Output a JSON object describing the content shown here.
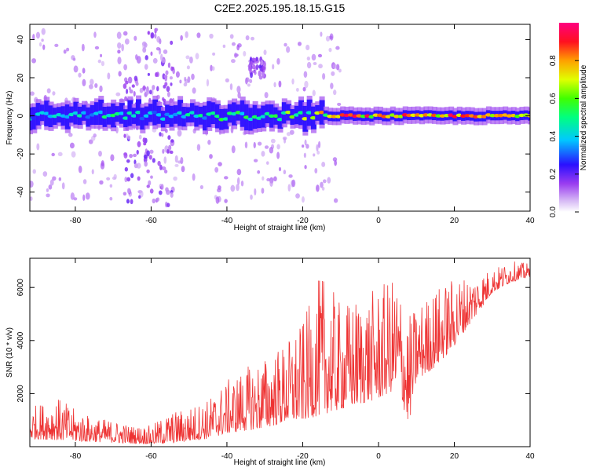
{
  "figure_title": "C2E2.2025.195.18.15.G15",
  "chart_data": [
    {
      "type": "heatmap",
      "title": "",
      "xlabel": "Height of straight line (km)",
      "ylabel": "Frequency (Hz)",
      "xlim": [
        -92,
        40
      ],
      "ylim": [
        -50,
        48
      ],
      "xticks": [
        -80,
        -60,
        -40,
        -20,
        0,
        20,
        40
      ],
      "yticks": [
        -40,
        -20,
        0,
        20,
        40
      ],
      "colorbar": {
        "label": "Normalized spectral amplitude",
        "range": [
          0.0,
          1.0
        ],
        "ticks": [
          "0.0",
          "0.2",
          "0.4",
          "0.6",
          "0.8"
        ],
        "colormap": "rainbow (white, violet, blue, cyan, green, yellow, orange, red, magenta)"
      },
      "band_center_hz": 0,
      "band_intensity_profile": {
        "x": [
          -92,
          -80,
          -70,
          -60,
          -50,
          -40,
          -30,
          -20,
          -15,
          -10,
          -5,
          0,
          5,
          10,
          20,
          30,
          40
        ],
        "amplitude": [
          0.35,
          0.4,
          0.45,
          0.38,
          0.42,
          0.5,
          0.55,
          0.6,
          0.7,
          0.8,
          0.85,
          0.7,
          0.8,
          0.85,
          0.8,
          0.8,
          0.75
        ]
      },
      "noise_clusters_hz": [
        {
          "x": -60,
          "freq_range": [
            -48,
            48
          ]
        },
        {
          "x": -56,
          "freq_range": [
            -48,
            40
          ]
        },
        {
          "x": -65,
          "freq_range": [
            -45,
            20
          ]
        },
        {
          "x": -32,
          "freq_range": [
            20,
            30
          ]
        }
      ],
      "grid": false
    },
    {
      "type": "line",
      "title": "",
      "xlabel": "Height of straight line (km)",
      "ylabel": "SNR (10 * v/v)",
      "xlim": [
        -92,
        40
      ],
      "ylim": [
        0,
        7100
      ],
      "xticks": [
        -80,
        -60,
        -40,
        -20,
        0,
        20,
        40
      ],
      "yticks": [
        2000,
        4000,
        6000
      ],
      "series_color": "#ee3333",
      "envelope": {
        "x": [
          -92,
          -85,
          -80,
          -75,
          -70,
          -65,
          -60,
          -55,
          -50,
          -45,
          -40,
          -35,
          -30,
          -25,
          -20,
          -15,
          -10,
          -5,
          0,
          5,
          8,
          10,
          15,
          20,
          25,
          30,
          35,
          40
        ],
        "low": [
          300,
          250,
          200,
          180,
          150,
          120,
          100,
          120,
          200,
          300,
          500,
          600,
          700,
          900,
          1000,
          1200,
          1400,
          1600,
          1800,
          2200,
          800,
          2500,
          3000,
          3800,
          4800,
          5800,
          6200,
          6400
        ],
        "high": [
          1500,
          1900,
          1400,
          1100,
          1000,
          800,
          800,
          1300,
          1500,
          1800,
          2500,
          3000,
          3400,
          3900,
          4700,
          6600,
          5400,
          5700,
          6000,
          6500,
          5000,
          5300,
          6000,
          6400,
          6500,
          6700,
          7000,
          6900
        ]
      },
      "grid": false
    }
  ]
}
